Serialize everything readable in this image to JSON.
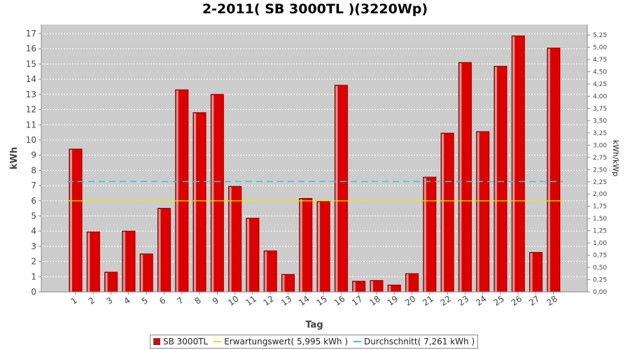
{
  "colors": {
    "bar": "#dd0000",
    "expected_line": "#e5e500",
    "average_line": "#33cccc",
    "plot_bg": "#cccccc"
  },
  "chart_data": {
    "type": "bar",
    "title": "2-2011( SB 3000TL )(3220Wp)",
    "xlabel": "Tag",
    "ylabel": "kWh",
    "y2label": "kWh/kWp",
    "ylim": [
      0,
      17.6
    ],
    "y_ticks": [
      0,
      1,
      2,
      3,
      4,
      5,
      6,
      7,
      8,
      9,
      10,
      11,
      12,
      13,
      14,
      15,
      16,
      17
    ],
    "y2_ticks": [
      "0,00",
      "0,25",
      "0,50",
      "0,75",
      "1,00",
      "1,25",
      "1,50",
      "1,75",
      "2,00",
      "2,25",
      "2,50",
      "2,75",
      "3,00",
      "3,25",
      "3,50",
      "3,75",
      "4,00",
      "4,25",
      "4,50",
      "4,75",
      "5,00",
      "5,25"
    ],
    "y2_tick_values": [
      0,
      0.25,
      0.5,
      0.75,
      1.0,
      1.25,
      1.5,
      1.75,
      2.0,
      2.25,
      2.5,
      2.75,
      3.0,
      3.25,
      3.5,
      3.75,
      4.0,
      4.25,
      4.5,
      4.75,
      5.0,
      5.25
    ],
    "kwp": 3.22,
    "grid": true,
    "legend_position": "bottom",
    "categories": [
      "1",
      "2",
      "3",
      "4",
      "5",
      "6",
      "7",
      "8",
      "9",
      "10",
      "11",
      "12",
      "13",
      "14",
      "15",
      "16",
      "17",
      "18",
      "19",
      "20",
      "21",
      "22",
      "23",
      "24",
      "25",
      "26",
      "27",
      "28"
    ],
    "series": [
      {
        "name": "SB 3000TL",
        "values": [
          9.4,
          3.95,
          1.3,
          4.0,
          2.5,
          5.5,
          13.3,
          11.8,
          13.0,
          6.95,
          4.85,
          2.7,
          1.15,
          6.15,
          5.95,
          13.6,
          0.7,
          0.75,
          0.45,
          1.2,
          7.55,
          10.45,
          15.1,
          10.55,
          14.85,
          16.85,
          2.6,
          16.05
        ]
      }
    ],
    "reference_lines": [
      {
        "name": "Erwartungswert( 5,995 kWh )",
        "value": 5.995,
        "style": "solid"
      },
      {
        "name": "Durchschnitt( 7,261 kWh )",
        "value": 7.261,
        "style": "dashed"
      }
    ]
  }
}
